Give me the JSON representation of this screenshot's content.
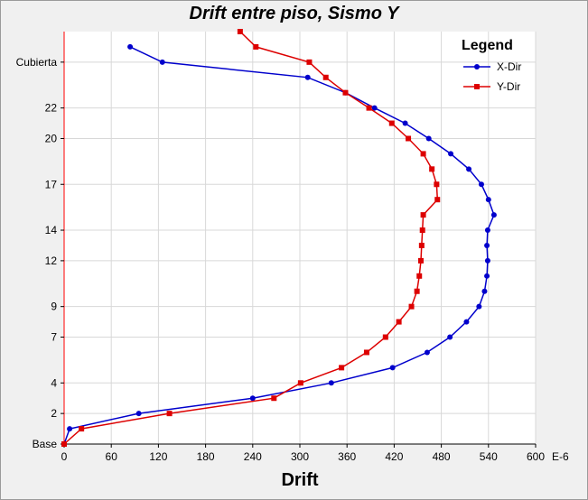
{
  "chart_data": {
    "type": "line",
    "title": "Drift entre piso, Sismo Y",
    "xlabel": "Drift",
    "x_unit": "E-6",
    "xlim": [
      0,
      600
    ],
    "x_ticks": [
      0,
      60,
      120,
      180,
      240,
      300,
      360,
      420,
      480,
      540,
      600
    ],
    "ylim": [
      0,
      27
    ],
    "y_ticks": [
      {
        "value": 0,
        "label": "Base"
      },
      {
        "value": 2,
        "label": "2"
      },
      {
        "value": 4,
        "label": "4"
      },
      {
        "value": 7,
        "label": "7"
      },
      {
        "value": 9,
        "label": "9"
      },
      {
        "value": 12,
        "label": "12"
      },
      {
        "value": 14,
        "label": "14"
      },
      {
        "value": 17,
        "label": "17"
      },
      {
        "value": 20,
        "label": "20"
      },
      {
        "value": 22,
        "label": "22"
      },
      {
        "value": 25,
        "label": "Cubierta"
      }
    ],
    "grid": true,
    "legend": {
      "title": "Legend",
      "position": "top-right"
    },
    "series": [
      {
        "name": "X-Dir",
        "color": "#0000cc",
        "marker": "circle",
        "points": [
          [
            0,
            0
          ],
          [
            7,
            1
          ],
          [
            95,
            2
          ],
          [
            240,
            3
          ],
          [
            340,
            4
          ],
          [
            418,
            5
          ],
          [
            462,
            6
          ],
          [
            491,
            7
          ],
          [
            512,
            8
          ],
          [
            528,
            9
          ],
          [
            535,
            10
          ],
          [
            538,
            11
          ],
          [
            539,
            12
          ],
          [
            538,
            13
          ],
          [
            539,
            14
          ],
          [
            547,
            15
          ],
          [
            540,
            16
          ],
          [
            531,
            17
          ],
          [
            515,
            18
          ],
          [
            492,
            19
          ],
          [
            464,
            20
          ],
          [
            434,
            21
          ],
          [
            395,
            22
          ],
          [
            358,
            23
          ],
          [
            310,
            24
          ],
          [
            125,
            25
          ],
          [
            84,
            26
          ]
        ]
      },
      {
        "name": "Y-Dir",
        "color": "#dd0000",
        "marker": "square",
        "points": [
          [
            0,
            0
          ],
          [
            22,
            1
          ],
          [
            134,
            2
          ],
          [
            267,
            3
          ],
          [
            301,
            4
          ],
          [
            353,
            5
          ],
          [
            385,
            6
          ],
          [
            409,
            7
          ],
          [
            426,
            8
          ],
          [
            442,
            9
          ],
          [
            449,
            10
          ],
          [
            452,
            11
          ],
          [
            454,
            12
          ],
          [
            455,
            13
          ],
          [
            456,
            14
          ],
          [
            457,
            15
          ],
          [
            475,
            16
          ],
          [
            474,
            17
          ],
          [
            468,
            18
          ],
          [
            457,
            19
          ],
          [
            438,
            20
          ],
          [
            417,
            21
          ],
          [
            388,
            22
          ],
          [
            358,
            23
          ],
          [
            333,
            24
          ],
          [
            312,
            25
          ],
          [
            244,
            26
          ],
          [
            224,
            27
          ]
        ]
      }
    ]
  }
}
